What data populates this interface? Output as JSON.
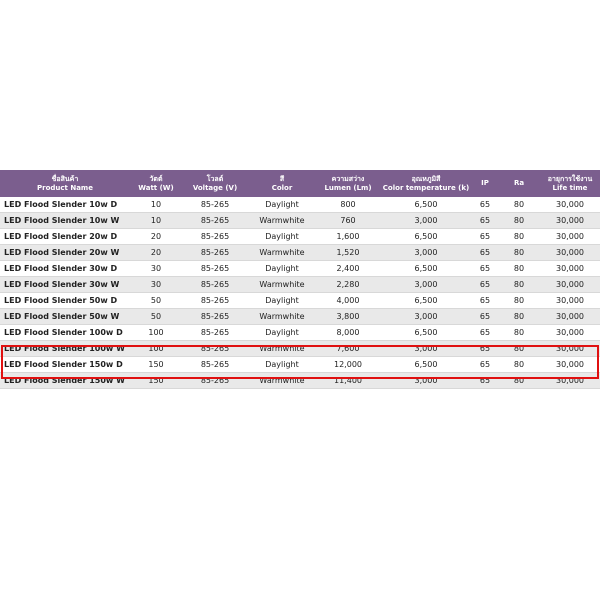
{
  "columns": [
    {
      "th": "ชื่อสินค้า",
      "en": "Product Name"
    },
    {
      "th": "วัตต์",
      "en": "Watt (W)"
    },
    {
      "th": "โวลต์",
      "en": "Voltage (V)"
    },
    {
      "th": "สี",
      "en": "Color"
    },
    {
      "th": "ความสว่าง",
      "en": "Lumen (Lm)"
    },
    {
      "th": "อุณหภูมิสี",
      "en": "Color temperature (k)"
    },
    {
      "th": "",
      "en": "IP"
    },
    {
      "th": "",
      "en": "Ra"
    },
    {
      "th": "อายุการใช้งาน",
      "en": "Life time"
    }
  ],
  "rows": [
    [
      "LED Flood Slender 10w D",
      "10",
      "85-265",
      "Daylight",
      "800",
      "6,500",
      "65",
      "80",
      "30,000"
    ],
    [
      "LED Flood Slender 10w W",
      "10",
      "85-265",
      "Warmwhite",
      "760",
      "3,000",
      "65",
      "80",
      "30,000"
    ],
    [
      "LED Flood Slender 20w D",
      "20",
      "85-265",
      "Daylight",
      "1,600",
      "6,500",
      "65",
      "80",
      "30,000"
    ],
    [
      "LED Flood Slender 20w W",
      "20",
      "85-265",
      "Warmwhite",
      "1,520",
      "3,000",
      "65",
      "80",
      "30,000"
    ],
    [
      "LED Flood Slender 30w D",
      "30",
      "85-265",
      "Daylight",
      "2,400",
      "6,500",
      "65",
      "80",
      "30,000"
    ],
    [
      "LED Flood Slender 30w W",
      "30",
      "85-265",
      "Warmwhite",
      "2,280",
      "3,000",
      "65",
      "80",
      "30,000"
    ],
    [
      "LED Flood Slender 50w D",
      "50",
      "85-265",
      "Daylight",
      "4,000",
      "6,500",
      "65",
      "80",
      "30,000"
    ],
    [
      "LED Flood Slender 50w W",
      "50",
      "85-265",
      "Warmwhite",
      "3,800",
      "3,000",
      "65",
      "80",
      "30,000"
    ],
    [
      "LED Flood Slender 100w D",
      "100",
      "85-265",
      "Daylight",
      "8,000",
      "6,500",
      "65",
      "80",
      "30,000"
    ],
    [
      "LED Flood Slender 100w W",
      "100",
      "85-265",
      "Warmwhite",
      "7,600",
      "3,000",
      "65",
      "80",
      "30,000"
    ],
    [
      "LED Flood Slender 150w D",
      "150",
      "85-265",
      "Daylight",
      "12,000",
      "6,500",
      "65",
      "80",
      "30,000"
    ],
    [
      "LED Flood Slender 150w W",
      "150",
      "85-265",
      "Warmwhite",
      "11,400",
      "3,000",
      "65",
      "80",
      "30,000"
    ]
  ],
  "highlighted_rows": [
    "LED Flood Slender 150w D",
    "LED Flood Slender 150w W"
  ],
  "colors": {
    "header": "#7b5e8e",
    "highlight": "#e01010",
    "alt_row": "#e9e9e9"
  }
}
